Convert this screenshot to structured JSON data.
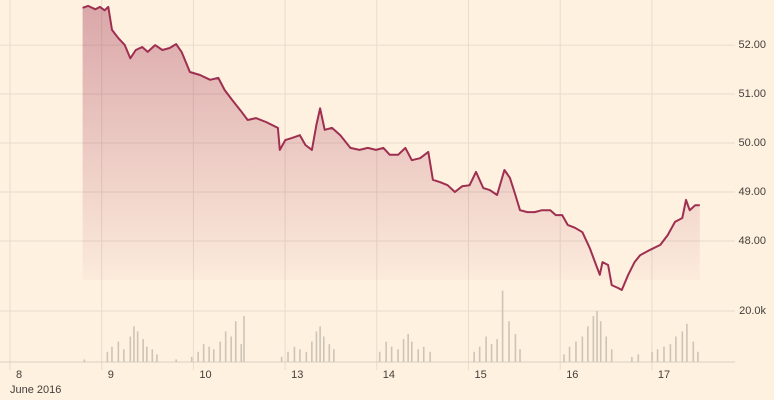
{
  "chart_data": [
    {
      "type": "line",
      "color": "#9e2f50",
      "x": [
        0.77,
        0.83,
        0.91,
        0.96,
        1.01,
        1.05,
        1.09,
        1.16,
        1.23,
        1.29,
        1.35,
        1.42,
        1.48,
        1.56,
        1.64,
        1.72,
        1.79,
        1.85,
        1.94,
        2.05,
        2.16,
        2.25,
        2.32,
        2.4,
        2.49,
        2.57,
        2.66,
        2.77,
        2.9,
        2.92,
        2.98,
        3.05,
        3.14,
        3.2,
        3.27,
        3.32,
        3.36,
        3.41,
        3.49,
        3.58,
        3.69,
        3.79,
        3.88,
        3.97,
        4.05,
        4.12,
        4.21,
        4.29,
        4.36,
        4.45,
        4.54,
        4.59,
        4.67,
        4.75,
        4.83,
        4.91,
        4.99,
        5.06,
        5.14,
        5.21,
        5.29,
        5.37,
        5.43,
        5.49,
        5.54,
        5.62,
        5.7,
        5.78,
        5.87,
        5.93,
        6.0,
        6.06,
        6.14,
        6.22,
        6.3,
        6.37,
        6.41,
        6.44,
        6.5,
        6.54,
        6.61,
        6.65,
        6.72,
        6.79,
        6.85,
        6.96,
        7.07,
        7.15,
        7.23,
        7.31,
        7.35,
        7.39,
        7.45,
        7.5
      ],
      "values": [
        52.76,
        52.8,
        52.73,
        52.78,
        52.71,
        52.78,
        52.31,
        52.14,
        52.0,
        51.73,
        51.9,
        51.96,
        51.86,
        52.0,
        51.9,
        51.94,
        52.02,
        51.86,
        51.45,
        51.39,
        51.29,
        51.33,
        51.08,
        50.88,
        50.67,
        50.47,
        50.51,
        50.43,
        50.31,
        49.86,
        50.06,
        50.1,
        50.16,
        49.96,
        49.86,
        50.37,
        50.71,
        50.27,
        50.31,
        50.16,
        49.9,
        49.86,
        49.9,
        49.86,
        49.9,
        49.76,
        49.76,
        49.9,
        49.65,
        49.69,
        49.82,
        49.25,
        49.2,
        49.14,
        49.0,
        49.12,
        49.14,
        49.41,
        49.08,
        49.04,
        48.94,
        49.45,
        49.29,
        48.94,
        48.63,
        48.59,
        48.59,
        48.63,
        48.63,
        48.53,
        48.53,
        48.33,
        48.27,
        48.18,
        47.86,
        47.51,
        47.31,
        47.57,
        47.51,
        47.1,
        47.04,
        47.0,
        47.31,
        47.57,
        47.71,
        47.82,
        47.92,
        48.12,
        48.39,
        48.47,
        48.84,
        48.63,
        48.73,
        48.73
      ],
      "xlim": [
        0,
        8
      ],
      "ylim": [
        46.5,
        52.92
      ],
      "yticks": [
        {
          "value": 48,
          "label": "48.00"
        },
        {
          "value": 49,
          "label": "49.00"
        },
        {
          "value": 50,
          "label": "50.00"
        },
        {
          "value": 51,
          "label": "51.00"
        },
        {
          "value": 52,
          "label": "52.00"
        }
      ],
      "grid": true
    },
    {
      "type": "bar",
      "color": "#cdc4b6",
      "x": [
        0.79,
        1.04,
        1.09,
        1.16,
        1.22,
        1.29,
        1.33,
        1.37,
        1.43,
        1.47,
        1.53,
        1.58,
        1.79,
        1.96,
        2.03,
        2.09,
        2.15,
        2.2,
        2.27,
        2.33,
        2.39,
        2.44,
        2.5,
        2.53,
        2.94,
        3.01,
        3.08,
        3.14,
        3.21,
        3.27,
        3.32,
        3.36,
        3.4,
        3.46,
        3.51,
        4.01,
        4.08,
        4.14,
        4.21,
        4.27,
        4.32,
        4.36,
        4.43,
        4.49,
        4.56,
        5.04,
        5.1,
        5.17,
        5.23,
        5.29,
        5.35,
        5.42,
        5.49,
        5.54,
        6.02,
        6.08,
        6.15,
        6.22,
        6.28,
        6.34,
        6.38,
        6.42,
        6.48,
        6.54,
        6.76,
        6.83,
        6.98,
        7.04,
        7.11,
        7.18,
        7.24,
        7.31,
        7.36,
        7.43,
        7.48
      ],
      "values": [
        1000,
        4000,
        6000,
        8000,
        5000,
        10000,
        14000,
        12000,
        9000,
        6000,
        5000,
        3000,
        1000,
        2000,
        4000,
        7000,
        6000,
        5000,
        8000,
        12000,
        10000,
        16000,
        7000,
        18000,
        2000,
        4000,
        6000,
        5000,
        4000,
        8000,
        12000,
        14000,
        10000,
        7000,
        5000,
        4000,
        8000,
        6000,
        5000,
        9000,
        11000,
        8000,
        5000,
        6000,
        4000,
        4000,
        6000,
        10000,
        7000,
        9000,
        28000,
        16000,
        11000,
        5000,
        3000,
        6000,
        8000,
        10000,
        14000,
        18000,
        20000,
        16000,
        10000,
        5000,
        2000,
        3000,
        4000,
        5000,
        6000,
        7000,
        10000,
        12000,
        15000,
        8000,
        4000
      ],
      "xlim": [
        0,
        8
      ],
      "ylim": [
        0,
        30000
      ],
      "yticks": [
        {
          "value": 20000,
          "label": "20.0k"
        }
      ],
      "xticks": [
        {
          "value": 0,
          "label": "8"
        },
        {
          "value": 1,
          "label": "9"
        },
        {
          "value": 2,
          "label": "10"
        },
        {
          "value": 3,
          "label": "13"
        },
        {
          "value": 4,
          "label": "14"
        },
        {
          "value": 5,
          "label": "15"
        },
        {
          "value": 6,
          "label": "16"
        },
        {
          "value": 7,
          "label": "17"
        }
      ],
      "x_axis_label": "June 2016",
      "grid": true
    }
  ]
}
